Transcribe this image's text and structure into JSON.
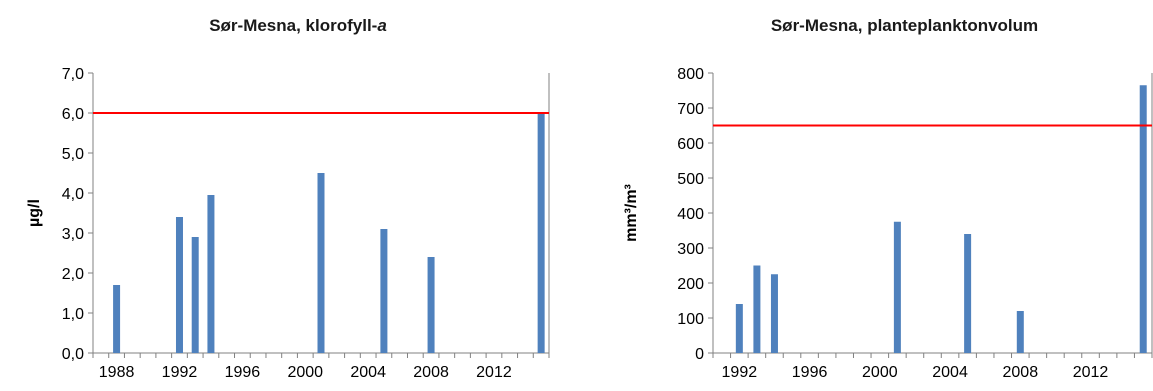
{
  "chart_data": [
    {
      "type": "bar",
      "title": "Sør-Mesna, klorofyll-",
      "title_italic_suffix": "a",
      "ylabel": "µg/l",
      "xlabel": "",
      "ylim": [
        0,
        7
      ],
      "xlim": [
        1987,
        2016
      ],
      "yticks": [
        "0,0",
        "1,0",
        "2,0",
        "3,0",
        "4,0",
        "5,0",
        "6,0",
        "7,0"
      ],
      "xticks": [
        "1988",
        "1992",
        "1996",
        "2000",
        "2004",
        "2008",
        "2012"
      ],
      "x": [
        1988,
        1992,
        1993,
        1994,
        2001,
        2005,
        2008,
        2015
      ],
      "values": [
        1.7,
        3.4,
        2.9,
        3.95,
        4.5,
        3.1,
        2.4,
        6.0
      ],
      "reference_line": 6.0,
      "grid": false,
      "colors": {
        "bar": "#4f81bd",
        "reference": "#ff0000",
        "axis": "#808080"
      }
    },
    {
      "type": "bar",
      "title": "Sør-Mesna, planteplanktonvolum",
      "title_italic_suffix": "",
      "ylabel": "mm³/m³",
      "xlabel": "",
      "ylim": [
        0,
        800
      ],
      "xlim": [
        1991,
        2016
      ],
      "yticks": [
        "0",
        "100",
        "200",
        "300",
        "400",
        "500",
        "600",
        "700",
        "800"
      ],
      "xticks": [
        "1992",
        "1996",
        "2000",
        "2004",
        "2008",
        "2012"
      ],
      "x": [
        1992,
        1993,
        1994,
        2001,
        2005,
        2008,
        2015
      ],
      "values": [
        140,
        250,
        225,
        375,
        340,
        120,
        765
      ],
      "reference_line": 650,
      "grid": false,
      "colors": {
        "bar": "#4f81bd",
        "reference": "#ff0000",
        "axis": "#808080"
      }
    }
  ]
}
